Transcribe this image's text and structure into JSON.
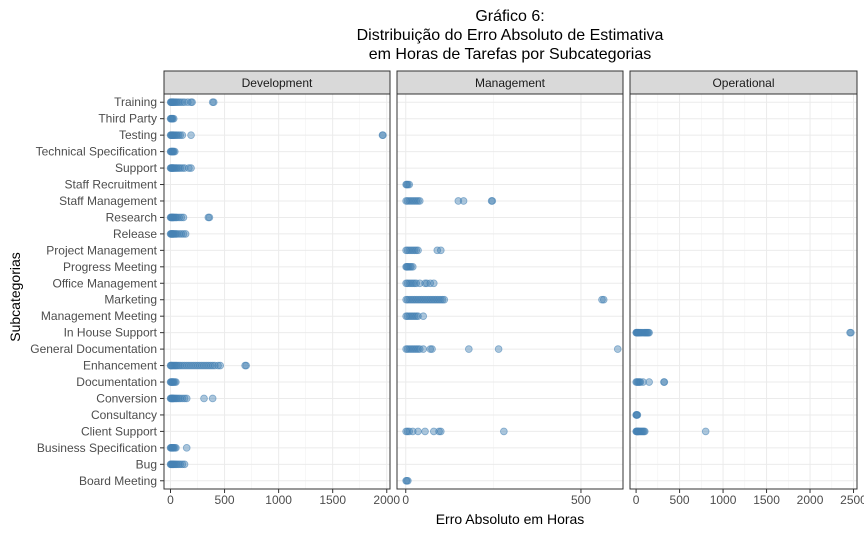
{
  "chart_data": {
    "type": "scatter",
    "title": [
      "Gráfico 6:",
      "Distribuição do Erro Absoluto de Estimativa",
      "em Horas de Tarefas por Subcategorias"
    ],
    "xlabel": "Erro Absoluto em Horas",
    "ylabel": "Subcategorias",
    "marker_color": "#4682b4",
    "categories": [
      "Training",
      "Third Party",
      "Testing",
      "Technical Specification",
      "Support",
      "Staff Recruitment",
      "Staff Management",
      "Research",
      "Release",
      "Project Management",
      "Progress Meeting",
      "Office Management",
      "Marketing",
      "Management Meeting",
      "In House Support",
      "General Documentation",
      "Enhancement",
      "Documentation",
      "Conversion",
      "Consultancy",
      "Client Support",
      "Business Specification",
      "Bug",
      "Board Meeting"
    ],
    "panels": [
      {
        "name": "Development",
        "xlim": [
          -60,
          2030
        ],
        "xticks": [
          0,
          500,
          1000,
          1500,
          2000
        ],
        "points": [
          {
            "category": "Training",
            "x": [
              2,
              5,
              10,
              15,
              20,
              25,
              30,
              40,
              50,
              60,
              75,
              90,
              110,
              130,
              160,
              190,
              200,
              390,
              400
            ]
          },
          {
            "category": "Third Party",
            "x": [
              1,
              5,
              10,
              15,
              20,
              30
            ]
          },
          {
            "category": "Testing",
            "x": [
              1,
              5,
              10,
              15,
              20,
              25,
              30,
              40,
              50,
              60,
              75,
              90,
              110,
              190,
              1960,
              1965
            ]
          },
          {
            "category": "Technical Specification",
            "x": [
              1,
              5,
              10,
              15,
              20,
              25,
              30,
              40
            ]
          },
          {
            "category": "Support",
            "x": [
              1,
              5,
              10,
              15,
              20,
              25,
              30,
              40,
              50,
              60,
              75,
              90,
              110,
              130,
              170,
              190
            ]
          },
          {
            "category": "Research",
            "x": [
              1,
              5,
              10,
              15,
              20,
              25,
              30,
              40,
              50,
              60,
              80,
              100,
              120,
              350,
              360
            ]
          },
          {
            "category": "Release",
            "x": [
              1,
              5,
              10,
              15,
              20,
              25,
              30,
              40,
              50,
              60,
              80,
              100,
              120,
              140
            ]
          },
          {
            "category": "Enhancement",
            "x": [
              1,
              5,
              10,
              20,
              30,
              40,
              50,
              60,
              75,
              90,
              110,
              130,
              150,
              170,
              190,
              210,
              230,
              250,
              270,
              290,
              310,
              330,
              350,
              370,
              390,
              410,
              440,
              460,
              690,
              700
            ]
          },
          {
            "category": "Documentation",
            "x": [
              1,
              5,
              10,
              15,
              20,
              25,
              30,
              40,
              50
            ]
          },
          {
            "category": "Conversion",
            "x": [
              1,
              5,
              10,
              15,
              20,
              25,
              30,
              40,
              50,
              60,
              75,
              90,
              110,
              130,
              150,
              310,
              390
            ]
          },
          {
            "category": "Business Specification",
            "x": [
              1,
              5,
              10,
              15,
              20,
              25,
              30,
              40,
              50,
              150
            ]
          },
          {
            "category": "Bug",
            "x": [
              1,
              5,
              10,
              15,
              20,
              25,
              30,
              40,
              50,
              60,
              75,
              90,
              110,
              130
            ]
          }
        ]
      },
      {
        "name": "Management",
        "xlim": [
          -25,
          620
        ],
        "xticks": [
          0,
          500
        ],
        "points": [
          {
            "category": "Staff Recruitment",
            "x": [
              1,
              3,
              6,
              10
            ]
          },
          {
            "category": "Staff Management",
            "x": [
              1,
              5,
              10,
              15,
              20,
              25,
              30,
              35,
              40,
              150,
              165,
              245,
              247
            ]
          },
          {
            "category": "Project Management",
            "x": [
              1,
              5,
              10,
              15,
              20,
              25,
              30,
              35,
              90,
              100
            ]
          },
          {
            "category": "Progress Meeting",
            "x": [
              1,
              3,
              5,
              8,
              12,
              15,
              20
            ]
          },
          {
            "category": "Office Management",
            "x": [
              1,
              5,
              10,
              15,
              20,
              25,
              30,
              40,
              55,
              60,
              70,
              80
            ]
          },
          {
            "category": "Marketing",
            "x": [
              1,
              5,
              10,
              15,
              20,
              25,
              30,
              35,
              40,
              45,
              50,
              55,
              60,
              65,
              70,
              75,
              80,
              85,
              90,
              95,
              100,
              105,
              110,
              560,
              565
            ]
          },
          {
            "category": "Management Meeting",
            "x": [
              1,
              5,
              10,
              15,
              20,
              25,
              30,
              35,
              50
            ]
          },
          {
            "category": "General Documentation",
            "x": [
              1,
              5,
              10,
              15,
              20,
              25,
              30,
              35,
              40,
              50,
              70,
              75,
              180,
              265,
              605
            ]
          },
          {
            "category": "Client Support",
            "x": [
              1,
              5,
              10,
              20,
              35,
              55,
              80,
              95,
              100,
              280
            ]
          },
          {
            "category": "Board Meeting",
            "x": [
              1,
              3,
              6
            ]
          }
        ]
      },
      {
        "name": "Operational",
        "xlim": [
          -70,
          2540
        ],
        "xticks": [
          0,
          500,
          1000,
          1500,
          2000,
          2500
        ],
        "points": [
          {
            "category": "In House Support",
            "x": [
              1,
              5,
              10,
              15,
              20,
              25,
              30,
              40,
              50,
              60,
              75,
              90,
              100,
              110,
              120,
              130,
              140,
              150,
              2460,
              2470
            ]
          },
          {
            "category": "Documentation",
            "x": [
              1,
              10,
              20,
              30,
              40,
              50,
              80,
              150,
              320,
              325
            ]
          },
          {
            "category": "Consultancy",
            "x": [
              1,
              5,
              10,
              15
            ]
          },
          {
            "category": "Client Support",
            "x": [
              1,
              5,
              10,
              15,
              20,
              25,
              30,
              40,
              50,
              60,
              70,
              80,
              90,
              100,
              800
            ]
          }
        ]
      }
    ]
  }
}
